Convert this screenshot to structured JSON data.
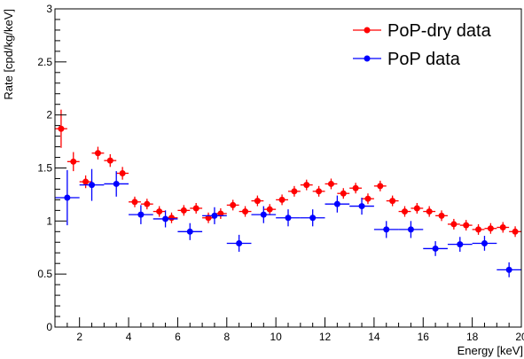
{
  "chart_data": {
    "type": "scatter",
    "xlabel": "Energy [keV]",
    "ylabel": "Rate [cpd/kg/keV]",
    "xlim": [
      1.0,
      20.0
    ],
    "ylim": [
      0.0,
      3.0
    ],
    "x_ticks": [
      2,
      4,
      6,
      8,
      10,
      12,
      14,
      16,
      18,
      20
    ],
    "x_tick_labels": [
      "2",
      "4",
      "6",
      "8",
      "10",
      "12",
      "14",
      "16",
      "18",
      "20"
    ],
    "y_ticks": [
      0,
      0.5,
      1,
      1.5,
      2,
      2.5,
      3
    ],
    "y_tick_labels": [
      "0",
      "0.5",
      "1",
      "1.5",
      "2",
      "2.5",
      "3"
    ],
    "grid": false,
    "legend": "top-right",
    "series": [
      {
        "name": "PoP-dry data",
        "color": "#ff0000",
        "x": [
          1.25,
          1.75,
          2.25,
          2.75,
          3.25,
          3.75,
          4.25,
          4.75,
          5.25,
          5.75,
          6.25,
          6.75,
          7.25,
          7.75,
          8.25,
          8.75,
          9.25,
          9.75,
          10.25,
          10.75,
          11.25,
          11.75,
          12.25,
          12.75,
          13.25,
          13.75,
          14.25,
          14.75,
          15.25,
          15.75,
          16.25,
          16.75,
          17.25,
          17.75,
          18.25,
          18.75,
          19.25,
          19.75
        ],
        "y": [
          1.87,
          1.56,
          1.37,
          1.64,
          1.57,
          1.45,
          1.18,
          1.16,
          1.09,
          1.03,
          1.1,
          1.12,
          1.03,
          1.07,
          1.15,
          1.09,
          1.19,
          1.11,
          1.2,
          1.28,
          1.34,
          1.28,
          1.35,
          1.26,
          1.31,
          1.21,
          1.33,
          1.19,
          1.09,
          1.12,
          1.09,
          1.05,
          0.97,
          0.96,
          0.92,
          0.93,
          0.94,
          0.9
        ],
        "xerr": 0.25,
        "yerr": [
          0.18,
          0.09,
          0.06,
          0.06,
          0.06,
          0.06,
          0.05,
          0.05,
          0.05,
          0.05,
          0.05,
          0.05,
          0.05,
          0.05,
          0.05,
          0.05,
          0.05,
          0.05,
          0.05,
          0.05,
          0.05,
          0.05,
          0.05,
          0.05,
          0.05,
          0.05,
          0.05,
          0.05,
          0.05,
          0.05,
          0.05,
          0.05,
          0.05,
          0.05,
          0.05,
          0.05,
          0.05,
          0.05
        ]
      },
      {
        "name": "PoP data",
        "color": "#0000ff",
        "x": [
          1.5,
          2.5,
          3.5,
          4.5,
          5.5,
          6.5,
          7.5,
          8.5,
          9.5,
          10.5,
          11.5,
          12.5,
          13.5,
          14.5,
          15.5,
          16.5,
          17.5,
          18.5,
          19.5
        ],
        "y": [
          1.22,
          1.34,
          1.35,
          1.06,
          1.02,
          0.9,
          1.05,
          0.79,
          1.06,
          1.03,
          1.03,
          1.16,
          1.14,
          0.92,
          0.92,
          0.74,
          0.78,
          0.79,
          0.54
        ],
        "xerr": 0.5,
        "yerr": [
          0.26,
          0.15,
          0.12,
          0.09,
          0.08,
          0.08,
          0.08,
          0.08,
          0.08,
          0.08,
          0.08,
          0.08,
          0.08,
          0.08,
          0.08,
          0.07,
          0.07,
          0.07,
          0.07
        ]
      }
    ]
  }
}
